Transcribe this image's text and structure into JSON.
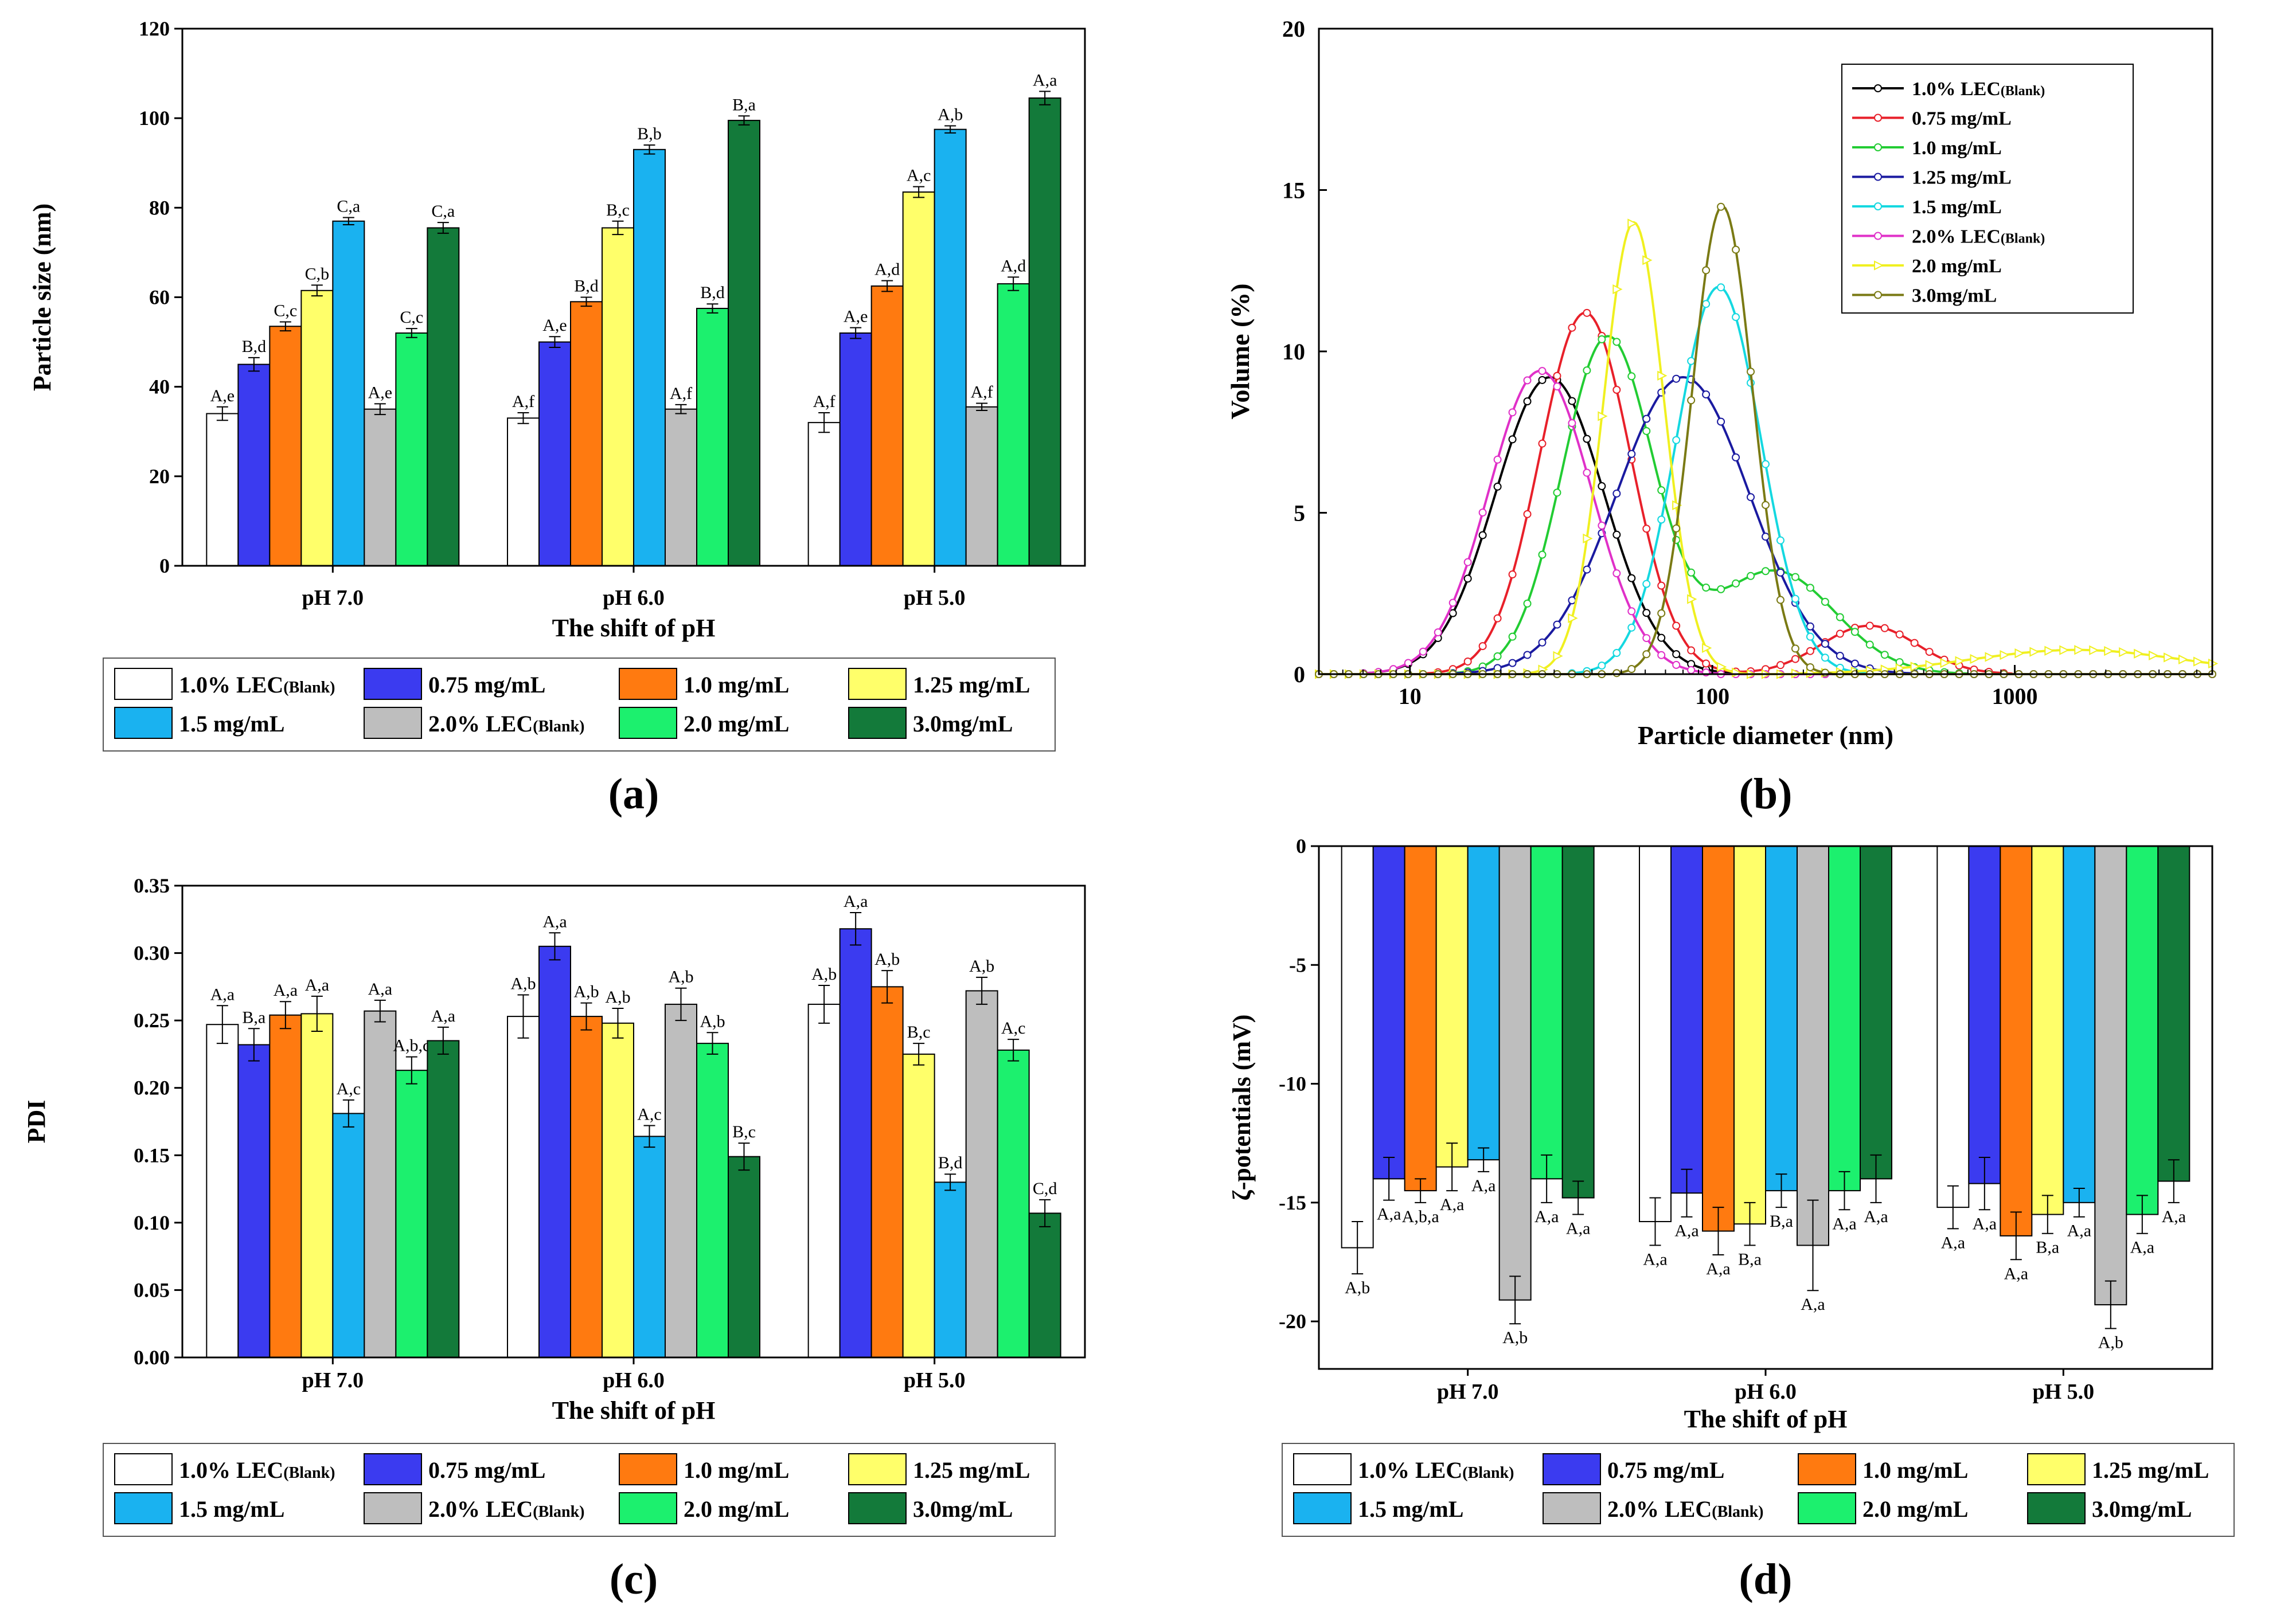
{
  "figure": {
    "series_names": [
      "1.0% LEC",
      "0.75 mg/mL",
      "1.0 mg/mL",
      "1.25 mg/mL",
      "1.5 mg/mL",
      "2.0% LEC",
      "2.0 mg/mL",
      "3.0mg/mL"
    ],
    "series_suffix": [
      "(Blank)",
      "",
      "",
      "",
      "",
      "(Blank)",
      "",
      ""
    ],
    "series_colors": [
      "#ffffff",
      "#3b3bf0",
      "#ff7a10",
      "#ffff6a",
      "#1ab2f0",
      "#bebebe",
      "#1cf06e",
      "#137a3a"
    ],
    "line_colors": [
      "#000000",
      "#e8202a",
      "#22cc33",
      "#1a1aa0",
      "#14d8e0",
      "#e030c8",
      "#f0f020",
      "#7a7a14"
    ]
  },
  "chart_data": [
    {
      "panel_label": "(a)",
      "type": "bar",
      "categories": [
        "pH 7.0",
        "pH 6.0",
        "pH 5.0"
      ],
      "xlabel": "The shift of pH",
      "ylabel": "Particle size (nm)",
      "ylim": [
        0,
        120
      ],
      "yticks": [
        "0",
        "20",
        "40",
        "60",
        "80",
        "100",
        "120"
      ],
      "series": [
        {
          "name": "1.0% LEC(Blank)",
          "values": [
            34,
            33,
            32
          ],
          "errors": [
            1.5,
            1.2,
            2.2
          ],
          "labels": [
            "A,e",
            "A,f",
            "A,f"
          ]
        },
        {
          "name": "0.75 mg/mL",
          "values": [
            45,
            50,
            52
          ],
          "errors": [
            1.5,
            1.2,
            1.2
          ],
          "labels": [
            "B,d",
            "A,e",
            "A,e"
          ]
        },
        {
          "name": "1.0 mg/mL",
          "values": [
            53.5,
            59,
            62.5
          ],
          "errors": [
            1.0,
            1.0,
            1.2
          ],
          "labels": [
            "C,c",
            "B,d",
            "A,d"
          ]
        },
        {
          "name": "1.25 mg/mL",
          "values": [
            61.5,
            75.5,
            83.5
          ],
          "errors": [
            1.2,
            1.5,
            1.2
          ],
          "labels": [
            "C,b",
            "B,c",
            "A,c"
          ]
        },
        {
          "name": "1.5 mg/mL",
          "values": [
            77,
            93,
            97.5
          ],
          "errors": [
            0.8,
            1.0,
            0.8
          ],
          "labels": [
            "C,a",
            "B,b",
            "A,b"
          ]
        },
        {
          "name": "2.0% LEC(Blank)",
          "values": [
            35,
            35,
            35.5
          ],
          "errors": [
            1.2,
            1.0,
            0.8
          ],
          "labels": [
            "A,e",
            "A,f",
            "A,f"
          ]
        },
        {
          "name": "2.0 mg/mL",
          "values": [
            52,
            57.5,
            63
          ],
          "errors": [
            1.0,
            1.0,
            1.5
          ],
          "labels": [
            "C,c",
            "B,d",
            "A,d"
          ]
        },
        {
          "name": "3.0mg/mL",
          "values": [
            75.5,
            99.5,
            104.5
          ],
          "errors": [
            1.2,
            1.0,
            1.5
          ],
          "labels": [
            "C,a",
            "B,a",
            "A,a"
          ]
        }
      ]
    },
    {
      "panel_label": "(b)",
      "type": "line",
      "xlabel": "Particle diameter (nm)",
      "ylabel": "Volume (%)",
      "xscale": "log",
      "xlim": [
        5,
        4500
      ],
      "ylim": [
        0,
        20
      ],
      "xticks": [
        "10",
        "100",
        "1000"
      ],
      "yticks": [
        "0",
        "5",
        "10",
        "15",
        "20"
      ],
      "legend_position": "top-right",
      "series": [
        {
          "name": "1.0% LEC(Blank)",
          "peaks": [
            [
              29,
              9.2,
              0.18
            ]
          ]
        },
        {
          "name": "0.75 mg/mL",
          "peaks": [
            [
              38,
              11.2,
              0.15
            ],
            [
              330,
              1.5,
              0.16
            ]
          ]
        },
        {
          "name": "1.0 mg/mL",
          "peaks": [
            [
              45,
              10.4,
              0.15
            ],
            [
              160,
              3.2,
              0.2
            ]
          ]
        },
        {
          "name": "1.25 mg/mL",
          "peaks": [
            [
              80,
              9.2,
              0.22
            ]
          ]
        },
        {
          "name": "1.5 mg/mL",
          "peaks": [
            [
              105,
              12.0,
              0.14
            ]
          ]
        },
        {
          "name": "2.0% LEC(Blank)",
          "peaks": [
            [
              27,
              9.4,
              0.17
            ]
          ]
        },
        {
          "name": "2.0 mg/mL",
          "peaks": [
            [
              55,
              14.0,
              0.1
            ],
            [
              1600,
              0.75,
              0.35
            ]
          ]
        },
        {
          "name": "3.0mg/mL",
          "peaks": [
            [
              108,
              14.5,
              0.1
            ]
          ]
        }
      ]
    },
    {
      "panel_label": "(c)",
      "type": "bar",
      "categories": [
        "pH 7.0",
        "pH 6.0",
        "pH 5.0"
      ],
      "xlabel": "The shift of pH",
      "ylabel": "PDI",
      "ylim": [
        0,
        0.35
      ],
      "yticks": [
        "0.00",
        "0.05",
        "0.10",
        "0.15",
        "0.20",
        "0.25",
        "0.30",
        "0.35"
      ],
      "series": [
        {
          "name": "1.0% LEC(Blank)",
          "values": [
            0.247,
            0.253,
            0.262
          ],
          "errors": [
            0.014,
            0.016,
            0.014
          ],
          "labels": [
            "A,a",
            "A,b",
            "A,b"
          ]
        },
        {
          "name": "0.75 mg/mL",
          "values": [
            0.232,
            0.305,
            0.318
          ],
          "errors": [
            0.012,
            0.01,
            0.012
          ],
          "labels": [
            "B,a",
            "A,a",
            "A,a"
          ]
        },
        {
          "name": "1.0 mg/mL",
          "values": [
            0.254,
            0.253,
            0.275
          ],
          "errors": [
            0.01,
            0.01,
            0.012
          ],
          "labels": [
            "A,a",
            "A,b",
            "A,b"
          ]
        },
        {
          "name": "1.25 mg/mL",
          "values": [
            0.255,
            0.248,
            0.225
          ],
          "errors": [
            0.013,
            0.011,
            0.008
          ],
          "labels": [
            "A,a",
            "A,b",
            "B,c"
          ]
        },
        {
          "name": "1.5 mg/mL",
          "values": [
            0.181,
            0.164,
            0.13
          ],
          "errors": [
            0.01,
            0.008,
            0.006
          ],
          "labels": [
            "A,c",
            "A,c",
            "B,d"
          ]
        },
        {
          "name": "2.0% LEC(Blank)",
          "values": [
            0.257,
            0.262,
            0.272
          ],
          "errors": [
            0.008,
            0.012,
            0.01
          ],
          "labels": [
            "A,a",
            "A,b",
            "A,b"
          ]
        },
        {
          "name": "2.0 mg/mL",
          "values": [
            0.213,
            0.233,
            0.228
          ],
          "errors": [
            0.01,
            0.008,
            0.008
          ],
          "labels": [
            "A,b,c",
            "A,b",
            "A,c"
          ]
        },
        {
          "name": "3.0mg/mL",
          "values": [
            0.235,
            0.149,
            0.107
          ],
          "errors": [
            0.01,
            0.01,
            0.01
          ],
          "labels": [
            "A,a",
            "B,c",
            "C,d"
          ]
        }
      ]
    },
    {
      "panel_label": "(d)",
      "type": "bar",
      "categories": [
        "pH 7.0",
        "pH 6.0",
        "pH 5.0"
      ],
      "xlabel": "The shift of pH",
      "ylabel": "ζ-potentials (mV)",
      "ylim": [
        -22,
        0
      ],
      "yticks": [
        "-20",
        "-15",
        "-10",
        "-5",
        "0"
      ],
      "series": [
        {
          "name": "1.0% LEC(Blank)",
          "values": [
            -16.9,
            -15.8,
            -15.2
          ],
          "errors": [
            1.1,
            1.0,
            0.9
          ],
          "labels": [
            "A,b",
            "A,a",
            "A,a"
          ]
        },
        {
          "name": "0.75 mg/mL",
          "values": [
            -14.0,
            -14.6,
            -14.2
          ],
          "errors": [
            0.9,
            1.0,
            1.1
          ],
          "labels": [
            "A,a",
            "A,a",
            "A,a"
          ]
        },
        {
          "name": "1.0 mg/mL",
          "values": [
            -14.5,
            -16.2,
            -16.4
          ],
          "errors": [
            0.5,
            1.0,
            1.0
          ],
          "labels": [
            "A,b,a",
            "A,a",
            "A,a"
          ]
        },
        {
          "name": "1.25 mg/mL",
          "values": [
            -13.5,
            -15.9,
            -15.5
          ],
          "errors": [
            1.0,
            0.9,
            0.8
          ],
          "labels": [
            "A,a",
            "B,a",
            "B,a"
          ]
        },
        {
          "name": "1.5 mg/mL",
          "values": [
            -13.2,
            -14.5,
            -15.0
          ],
          "errors": [
            0.5,
            0.7,
            0.6
          ],
          "labels": [
            "A,a",
            "B,a",
            "A,a"
          ]
        },
        {
          "name": "2.0% LEC(Blank)",
          "values": [
            -19.1,
            -16.8,
            -19.3
          ],
          "errors": [
            1.0,
            1.9,
            1.0
          ],
          "labels": [
            "A,b",
            "A,a",
            "A,b"
          ]
        },
        {
          "name": "2.0 mg/mL",
          "values": [
            -14.0,
            -14.5,
            -15.5
          ],
          "errors": [
            1.0,
            0.8,
            0.8
          ],
          "labels": [
            "A,a",
            "A,a",
            "A,a"
          ]
        },
        {
          "name": "3.0mg/mL",
          "values": [
            -14.8,
            -14.0,
            -14.1
          ],
          "errors": [
            0.7,
            1.0,
            0.9
          ],
          "labels": [
            "A,a",
            "A,a",
            "A,a"
          ]
        }
      ]
    }
  ]
}
